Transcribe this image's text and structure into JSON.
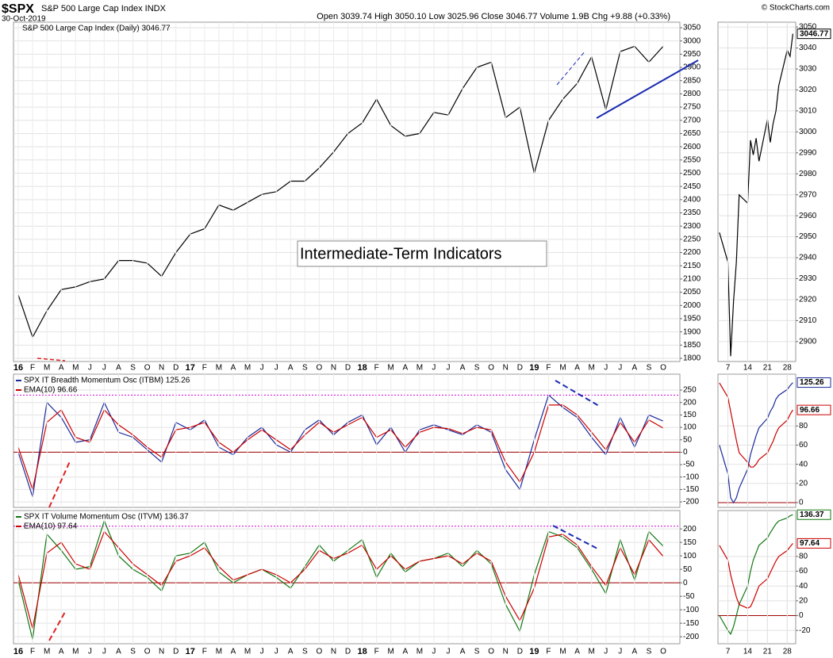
{
  "header": {
    "symbol": "$SPX",
    "name": "S&P 500 Large Cap Index  INDX",
    "date": "30-Oct-2019",
    "quote": "Open 3039.74  High 3050.10  Low 3025.96  Close 3046.77  Volume 1.9B  Chg +9.88 (+0.33%)",
    "source": "© StockCharts.com"
  },
  "annotation": "Intermediate-Term Indicators",
  "chart_data": [
    {
      "type": "line",
      "title": "S&P 500 Large Cap Index (Daily) 3046.77",
      "color": "#000000",
      "categories": [
        "16",
        "F",
        "M",
        "A",
        "M",
        "J",
        "J",
        "A",
        "S",
        "O",
        "N",
        "D",
        "17",
        "F",
        "M",
        "A",
        "M",
        "J",
        "J",
        "A",
        "S",
        "O",
        "N",
        "D",
        "18",
        "F",
        "M",
        "A",
        "M",
        "J",
        "J",
        "A",
        "S",
        "O",
        "N",
        "D",
        "19",
        "F",
        "M",
        "A",
        "M",
        "J",
        "J",
        "A",
        "S",
        "O"
      ],
      "values": [
        2040,
        1880,
        1980,
        2060,
        2070,
        2090,
        2100,
        2170,
        2170,
        2160,
        2110,
        2200,
        2270,
        2290,
        2380,
        2360,
        2390,
        2420,
        2430,
        2470,
        2470,
        2520,
        2580,
        2650,
        2690,
        2780,
        2680,
        2640,
        2650,
        2730,
        2720,
        2820,
        2900,
        2920,
        2710,
        2750,
        2500,
        2700,
        2780,
        2840,
        2940,
        2740,
        2960,
        2980,
        2920,
        2980
      ],
      "ylim": [
        1788,
        3071
      ],
      "yticks": [
        1800,
        1850,
        1900,
        1950,
        2000,
        2050,
        2100,
        2150,
        2200,
        2250,
        2300,
        2350,
        2400,
        2450,
        2500,
        2550,
        2600,
        2650,
        2700,
        2750,
        2800,
        2850,
        2900,
        2950,
        3000,
        3050
      ],
      "grid": true
    },
    {
      "type": "line",
      "series": [
        {
          "name": "SPX IT Breadth Momentum Osc (ITBM) 125.26",
          "color": "#1a2a9a",
          "values": [
            0,
            -180,
            200,
            140,
            40,
            50,
            200,
            80,
            60,
            10,
            -40,
            120,
            90,
            130,
            20,
            -10,
            60,
            100,
            30,
            0,
            90,
            130,
            70,
            120,
            150,
            30,
            100,
            0,
            90,
            110,
            90,
            70,
            110,
            80,
            -70,
            -150,
            50,
            230,
            180,
            140,
            60,
            -10,
            140,
            20,
            150,
            125
          ]
        },
        {
          "name": "EMA(10) 96.66",
          "color": "#cc0000",
          "values": [
            20,
            -150,
            120,
            170,
            60,
            40,
            170,
            110,
            70,
            20,
            -20,
            90,
            100,
            120,
            40,
            0,
            50,
            90,
            50,
            10,
            70,
            120,
            80,
            110,
            140,
            60,
            90,
            20,
            80,
            100,
            95,
            75,
            100,
            90,
            -40,
            -120,
            0,
            190,
            190,
            150,
            80,
            10,
            120,
            40,
            130,
            97
          ]
        }
      ],
      "reference_lines": [
        {
          "value": 230,
          "color": "#d400d4"
        },
        {
          "value": 0,
          "color": "#a00000"
        }
      ],
      "ylim": [
        -222,
        314
      ],
      "yticks": [
        -200,
        -150,
        -100,
        -50,
        0,
        50,
        100,
        150,
        200,
        250
      ],
      "grid": true
    },
    {
      "type": "line",
      "categories": [
        "16",
        "F",
        "M",
        "A",
        "M",
        "J",
        "J",
        "A",
        "S",
        "O",
        "N",
        "D",
        "17",
        "F",
        "M",
        "A",
        "M",
        "J",
        "J",
        "A",
        "S",
        "O",
        "N",
        "D",
        "18",
        "F",
        "M",
        "A",
        "M",
        "J",
        "J",
        "A",
        "S",
        "O",
        "N",
        "D",
        "19",
        "F",
        "M",
        "A",
        "M",
        "J",
        "J",
        "A",
        "S",
        "O"
      ],
      "series": [
        {
          "name": "SPX IT Volume Momentum Osc (ITVM) 136.37",
          "color": "#117711",
          "values": [
            10,
            -210,
            180,
            120,
            50,
            60,
            230,
            100,
            50,
            20,
            -30,
            100,
            110,
            150,
            40,
            0,
            30,
            50,
            20,
            -20,
            60,
            140,
            80,
            120,
            160,
            20,
            110,
            40,
            80,
            90,
            110,
            60,
            120,
            70,
            -80,
            -180,
            30,
            190,
            170,
            130,
            50,
            -40,
            160,
            10,
            190,
            136
          ]
        },
        {
          "name": "EMA(10) 97.64",
          "color": "#cc0000",
          "values": [
            30,
            -170,
            110,
            150,
            70,
            50,
            190,
            130,
            70,
            30,
            -10,
            80,
            100,
            130,
            60,
            10,
            30,
            50,
            30,
            0,
            50,
            120,
            90,
            110,
            140,
            50,
            100,
            50,
            80,
            90,
            100,
            70,
            110,
            80,
            -50,
            -140,
            -20,
            170,
            180,
            140,
            60,
            -10,
            130,
            30,
            160,
            98
          ]
        }
      ],
      "reference_lines": [
        {
          "value": 210,
          "color": "#d400d4"
        },
        {
          "value": 0,
          "color": "#a00000"
        }
      ],
      "ylim": [
        -226,
        268
      ],
      "yticks": [
        -200,
        -150,
        -100,
        -50,
        0,
        50,
        100,
        150,
        200
      ],
      "grid": true
    },
    {
      "type": "line",
      "color": "#000000",
      "x": [
        4,
        7,
        8,
        9,
        10,
        11,
        14,
        15,
        16,
        17,
        18,
        21,
        22,
        23,
        24,
        25,
        28,
        29,
        30
      ],
      "values": [
        2952,
        2938,
        2893,
        2919,
        2938,
        2970,
        2966,
        2996,
        2989,
        2997,
        2986,
        3006,
        2995,
        3004,
        3010,
        3022,
        3039,
        3036,
        3046.77
      ],
      "xlim": [
        3.5,
        31
      ],
      "xticks": [
        7,
        14,
        21,
        28
      ],
      "ylim": [
        2890.5,
        3052.3
      ],
      "yticks": [
        2900,
        2910,
        2920,
        2930,
        2940,
        2950,
        2960,
        2970,
        2980,
        2990,
        3000,
        3010,
        3020,
        3030,
        3040,
        3050
      ],
      "grid": true
    },
    {
      "type": "line",
      "x": [
        4,
        7,
        8,
        9,
        10,
        11,
        14,
        15,
        16,
        17,
        18,
        21,
        22,
        23,
        24,
        25,
        28,
        29,
        30
      ],
      "series": [
        {
          "color": "#1a2a9a",
          "values": [
            60,
            30,
            5,
            0,
            5,
            15,
            35,
            50,
            60,
            70,
            78,
            88,
            95,
            100,
            108,
            112,
            118,
            122,
            125.26
          ]
        },
        {
          "color": "#cc0000",
          "values": [
            125,
            110,
            95,
            80,
            65,
            52,
            42,
            37,
            37,
            40,
            45,
            52,
            58,
            64,
            72,
            78,
            86,
            92,
            96.66
          ]
        }
      ],
      "reference_lines": [
        {
          "value": 0,
          "color": "#a00000"
        }
      ],
      "xlim": [
        3.5,
        31
      ],
      "ylim": [
        -5,
        134
      ],
      "yticks": [
        0,
        20,
        40,
        60,
        80
      ],
      "grid": true
    },
    {
      "type": "line",
      "x": [
        4,
        7,
        8,
        9,
        10,
        11,
        14,
        15,
        16,
        17,
        18,
        21,
        22,
        23,
        24,
        25,
        28,
        29,
        30
      ],
      "series": [
        {
          "color": "#117711",
          "values": [
            0,
            -20,
            -25,
            -15,
            0,
            15,
            40,
            60,
            75,
            85,
            95,
            105,
            112,
            118,
            124,
            128,
            132,
            135,
            136.37
          ]
        },
        {
          "color": "#cc0000",
          "values": [
            95,
            75,
            55,
            40,
            25,
            15,
            10,
            12,
            20,
            30,
            40,
            50,
            58,
            66,
            74,
            80,
            88,
            93,
            97.64
          ]
        }
      ],
      "reference_lines": [
        {
          "value": 0,
          "color": "#a00000"
        }
      ],
      "xlim": [
        3.5,
        31
      ],
      "xticks": [
        7,
        14,
        21,
        28
      ],
      "ylim": [
        -38,
        142
      ],
      "yticks": [
        -20,
        0,
        20,
        40,
        60,
        80
      ],
      "grid": true
    }
  ]
}
